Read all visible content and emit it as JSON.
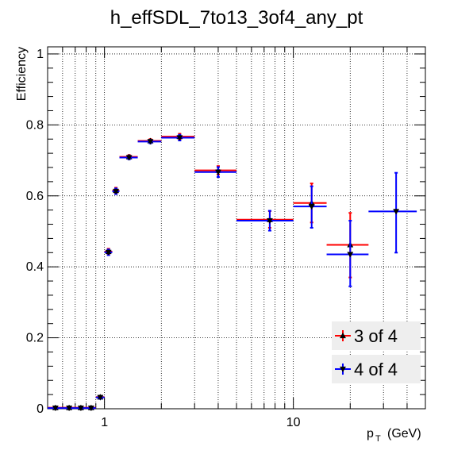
{
  "chart_data": {
    "type": "scatter",
    "title": "h_effSDL_7to13_3of4_any_pt",
    "ylabel": "Efficiency",
    "xlabel_main": "p",
    "xlabel_sub": "T",
    "xlabel_unit": "(GeV)",
    "x_scale": "log",
    "xlim": [
      0.5,
      50
    ],
    "ylim": [
      0,
      1.02
    ],
    "grid": true,
    "legend_position": "bottom-right",
    "y_ticks": [
      {
        "value": 0,
        "label": "0"
      },
      {
        "value": 0.2,
        "label": "0.2"
      },
      {
        "value": 0.4,
        "label": "0.4"
      },
      {
        "value": 0.6,
        "label": "0.6"
      },
      {
        "value": 0.8,
        "label": "0.8"
      },
      {
        "value": 1,
        "label": "1"
      }
    ],
    "x_ticks": [
      {
        "value": 1,
        "label": "1"
      },
      {
        "value": 10,
        "label": "10"
      }
    ],
    "series": [
      {
        "name": "3 of 4",
        "color": "#ff0000",
        "marker": "triangle-up",
        "points": [
          {
            "x": 0.55,
            "xlo": 0.5,
            "xhi": 0.6,
            "y": 0.003,
            "ylo": 0.001,
            "yhi": 0.006
          },
          {
            "x": 0.65,
            "xlo": 0.6,
            "xhi": 0.7,
            "y": 0.003,
            "ylo": 0.001,
            "yhi": 0.006
          },
          {
            "x": 0.75,
            "xlo": 0.7,
            "xhi": 0.8,
            "y": 0.003,
            "ylo": 0.001,
            "yhi": 0.006
          },
          {
            "x": 0.85,
            "xlo": 0.8,
            "xhi": 0.9,
            "y": 0.003,
            "ylo": 0.001,
            "yhi": 0.006
          },
          {
            "x": 0.95,
            "xlo": 0.9,
            "xhi": 1.0,
            "y": 0.033,
            "ylo": 0.029,
            "yhi": 0.037
          },
          {
            "x": 1.05,
            "xlo": 1.0,
            "xhi": 1.1,
            "y": 0.443,
            "ylo": 0.435,
            "yhi": 0.451
          },
          {
            "x": 1.15,
            "xlo": 1.1,
            "xhi": 1.2,
            "y": 0.615,
            "ylo": 0.607,
            "yhi": 0.623
          },
          {
            "x": 1.35,
            "xlo": 1.2,
            "xhi": 1.5,
            "y": 0.71,
            "ylo": 0.705,
            "yhi": 0.715
          },
          {
            "x": 1.75,
            "xlo": 1.5,
            "xhi": 2.0,
            "y": 0.755,
            "ylo": 0.75,
            "yhi": 0.76
          },
          {
            "x": 2.5,
            "xlo": 2.0,
            "xhi": 3.0,
            "y": 0.767,
            "ylo": 0.759,
            "yhi": 0.775
          },
          {
            "x": 4.0,
            "xlo": 3.0,
            "xhi": 5.0,
            "y": 0.672,
            "ylo": 0.66,
            "yhi": 0.684
          },
          {
            "x": 7.5,
            "xlo": 5.0,
            "xhi": 10.0,
            "y": 0.533,
            "ylo": 0.51,
            "yhi": 0.557
          },
          {
            "x": 12.5,
            "xlo": 10.0,
            "xhi": 15.0,
            "y": 0.58,
            "ylo": 0.525,
            "yhi": 0.635
          },
          {
            "x": 20.0,
            "xlo": 15.0,
            "xhi": 25.0,
            "y": 0.462,
            "ylo": 0.37,
            "yhi": 0.552
          }
        ]
      },
      {
        "name": "4 of 4",
        "color": "#0000ff",
        "marker": "triangle-down",
        "points": [
          {
            "x": 0.55,
            "xlo": 0.5,
            "xhi": 0.6,
            "y": 0.002,
            "ylo": 0.0,
            "yhi": 0.005
          },
          {
            "x": 0.65,
            "xlo": 0.6,
            "xhi": 0.7,
            "y": 0.002,
            "ylo": 0.0,
            "yhi": 0.005
          },
          {
            "x": 0.75,
            "xlo": 0.7,
            "xhi": 0.8,
            "y": 0.002,
            "ylo": 0.0,
            "yhi": 0.005
          },
          {
            "x": 0.85,
            "xlo": 0.8,
            "xhi": 0.9,
            "y": 0.002,
            "ylo": 0.0,
            "yhi": 0.005
          },
          {
            "x": 0.95,
            "xlo": 0.9,
            "xhi": 1.0,
            "y": 0.032,
            "ylo": 0.028,
            "yhi": 0.036
          },
          {
            "x": 1.05,
            "xlo": 1.0,
            "xhi": 1.1,
            "y": 0.441,
            "ylo": 0.433,
            "yhi": 0.449
          },
          {
            "x": 1.15,
            "xlo": 1.1,
            "xhi": 1.2,
            "y": 0.613,
            "ylo": 0.605,
            "yhi": 0.621
          },
          {
            "x": 1.35,
            "xlo": 1.2,
            "xhi": 1.5,
            "y": 0.708,
            "ylo": 0.703,
            "yhi": 0.713
          },
          {
            "x": 1.75,
            "xlo": 1.5,
            "xhi": 2.0,
            "y": 0.753,
            "ylo": 0.748,
            "yhi": 0.758
          },
          {
            "x": 2.5,
            "xlo": 2.0,
            "xhi": 3.0,
            "y": 0.764,
            "ylo": 0.756,
            "yhi": 0.772
          },
          {
            "x": 4.0,
            "xlo": 3.0,
            "xhi": 5.0,
            "y": 0.667,
            "ylo": 0.653,
            "yhi": 0.681
          },
          {
            "x": 7.5,
            "xlo": 5.0,
            "xhi": 10.0,
            "y": 0.53,
            "ylo": 0.502,
            "yhi": 0.558
          },
          {
            "x": 12.5,
            "xlo": 10.0,
            "xhi": 15.0,
            "y": 0.57,
            "ylo": 0.51,
            "yhi": 0.627
          },
          {
            "x": 20.0,
            "xlo": 15.0,
            "xhi": 25.0,
            "y": 0.435,
            "ylo": 0.345,
            "yhi": 0.53
          },
          {
            "x": 35.0,
            "xlo": 25.0,
            "xhi": 45.0,
            "y": 0.556,
            "ylo": 0.44,
            "yhi": 0.665
          }
        ]
      }
    ]
  }
}
